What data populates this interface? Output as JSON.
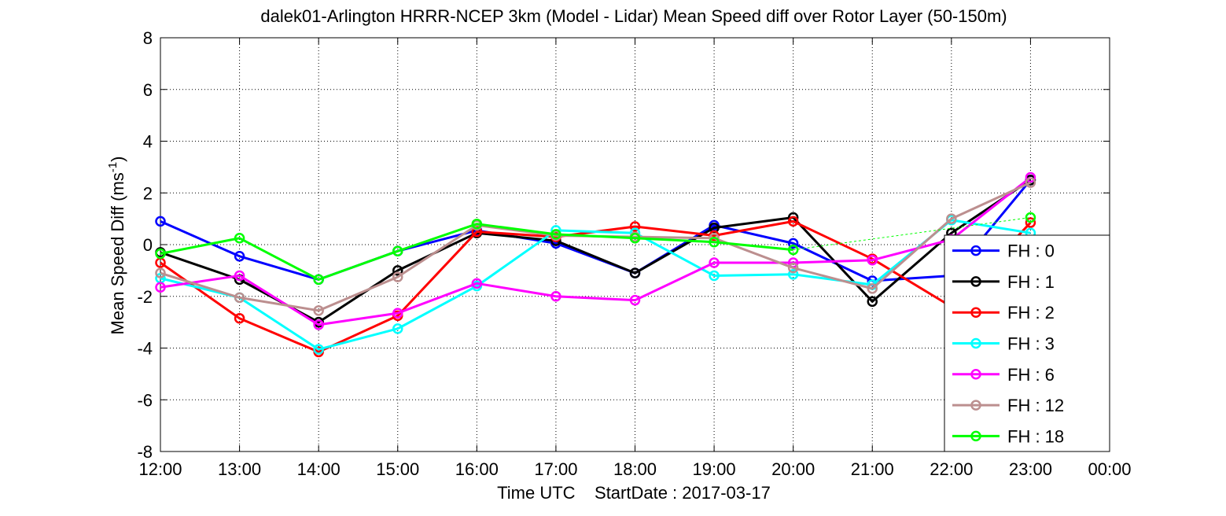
{
  "chart_data": {
    "type": "line",
    "title": "dalek01-Arlington HRRR-NCEP 3km (Model - Lidar) Mean Speed diff over Rotor Layer (50-150m)",
    "xlabel": "Time UTC    StartDate : 2017-03-17",
    "ylabel_main": "Mean Speed Diff (ms",
    "ylabel_sup": "-1",
    "ylabel_close": ")",
    "x_ticks": [
      "12:00",
      "13:00",
      "14:00",
      "15:00",
      "16:00",
      "17:00",
      "18:00",
      "19:00",
      "20:00",
      "21:00",
      "22:00",
      "23:00",
      "00:00"
    ],
    "xlim": [
      0,
      12
    ],
    "y_ticks": [
      -8,
      -6,
      -4,
      -2,
      0,
      2,
      4,
      6,
      8
    ],
    "ylim": [
      -8,
      8
    ],
    "grid": true,
    "legend_position": "bottom-right",
    "series": [
      {
        "name": "FH : 0",
        "color": "#0000ff",
        "x": [
          0,
          1,
          2,
          3,
          4,
          5,
          6,
          7,
          8,
          9,
          10,
          11
        ],
        "y": [
          0.9,
          -0.45,
          -1.35,
          -0.25,
          0.55,
          0.05,
          -1.1,
          0.75,
          0.05,
          -1.4,
          -1.2,
          2.5
        ]
      },
      {
        "name": "FH : 1",
        "color": "#000000",
        "x": [
          0,
          1,
          2,
          3,
          4,
          5,
          6,
          7,
          8,
          9,
          10,
          11
        ],
        "y": [
          -0.3,
          -1.35,
          -3.0,
          -1.0,
          0.45,
          0.15,
          -1.1,
          0.65,
          1.05,
          -2.2,
          0.45,
          2.5
        ]
      },
      {
        "name": "FH : 2",
        "color": "#ff0000",
        "x": [
          0,
          1,
          2,
          3,
          4,
          5,
          6,
          7,
          8,
          9,
          10,
          11
        ],
        "y": [
          -0.7,
          -2.85,
          -4.15,
          -2.75,
          0.5,
          0.3,
          0.7,
          0.35,
          0.9,
          -0.55,
          -2.4,
          0.85
        ]
      },
      {
        "name": "FH : 3",
        "color": "#00ffff",
        "x": [
          0,
          1,
          2,
          3,
          4,
          5,
          6,
          7,
          8,
          9,
          10,
          11
        ],
        "y": [
          -1.3,
          -2.05,
          -4.05,
          -3.25,
          -1.6,
          0.55,
          0.45,
          -1.2,
          -1.15,
          -1.55,
          0.95,
          0.45
        ]
      },
      {
        "name": "FH : 6",
        "color": "#ff00ff",
        "x": [
          0,
          1,
          2,
          3,
          4,
          5,
          6,
          7,
          8,
          9,
          10,
          11
        ],
        "y": [
          -1.65,
          -1.2,
          -3.1,
          -2.65,
          -1.5,
          -2.0,
          -2.15,
          -0.7,
          -0.7,
          -0.6,
          0.2,
          2.6
        ]
      },
      {
        "name": "FH : 12",
        "color": "#bc8f8f",
        "x": [
          0,
          1,
          2,
          3,
          4,
          5,
          6,
          7,
          8,
          9,
          10,
          11
        ],
        "y": [
          -1.1,
          -2.05,
          -2.55,
          -1.25,
          0.75,
          0.35,
          0.3,
          0.25,
          -0.9,
          -1.7,
          1.0,
          2.4
        ]
      },
      {
        "name": "FH : 18",
        "color": "#00ff00",
        "x": [
          0,
          1,
          2,
          3,
          4,
          5,
          6,
          7,
          8
        ],
        "y": [
          -0.35,
          0.25,
          -1.35,
          -0.25,
          0.8,
          0.4,
          0.25,
          0.1,
          -0.2
        ],
        "dashed_extension": {
          "x": [
            8,
            11
          ],
          "y": [
            -0.2,
            1.05
          ]
        },
        "last_point": {
          "x": 11,
          "y": 1.05
        }
      }
    ]
  }
}
